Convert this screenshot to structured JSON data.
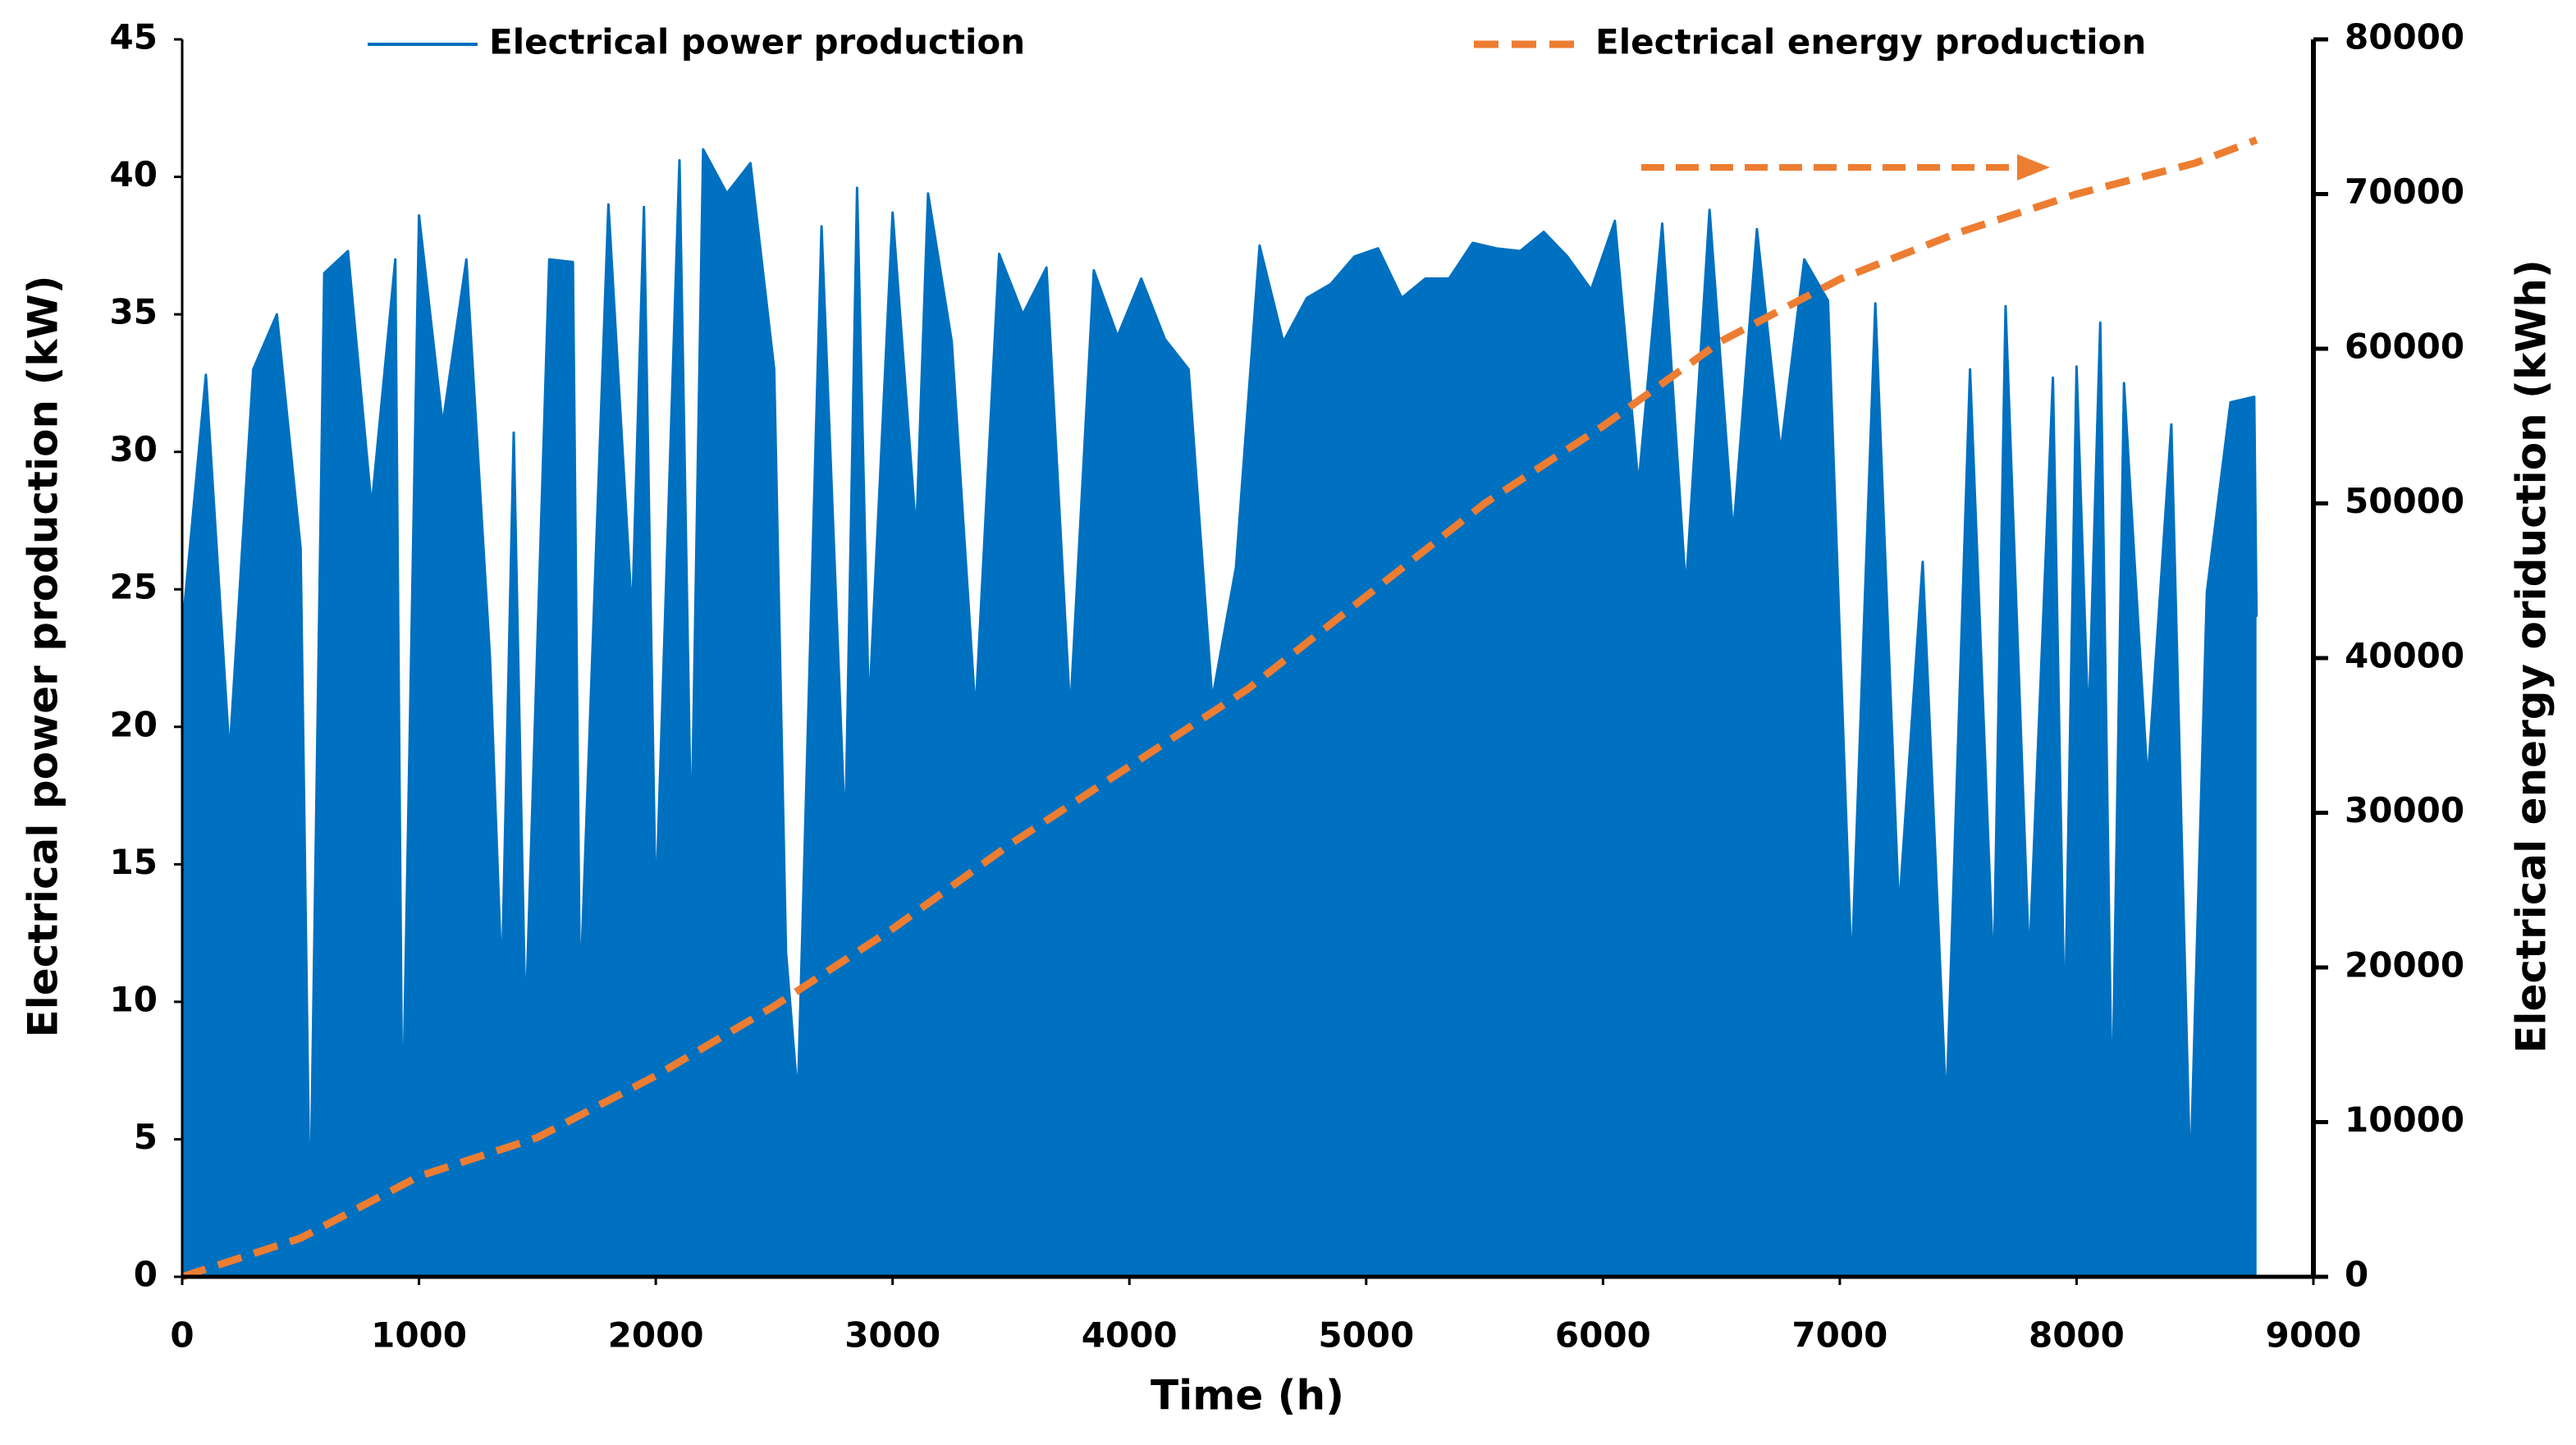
{
  "chart_data": {
    "type": "line",
    "xlabel": "Time (h)",
    "ylabel": "Electrical power production (kW)",
    "y2label": "Electrical energy oriduction (kWh)",
    "xlim": [
      0,
      9000
    ],
    "xticks": [
      0,
      1000,
      2000,
      3000,
      4000,
      5000,
      6000,
      7000,
      8000,
      9000
    ],
    "ylim": [
      0,
      45
    ],
    "yticks": [
      0,
      5,
      10,
      15,
      20,
      25,
      30,
      35,
      40,
      45
    ],
    "y2lim": [
      0,
      80000
    ],
    "y2ticks": [
      0,
      10000,
      20000,
      30000,
      40000,
      50000,
      60000,
      70000,
      80000
    ],
    "legend": "top",
    "series": [
      {
        "name": "Electrical power production",
        "color": "#0070c0",
        "fill": true,
        "x": [
          0,
          100,
          200,
          300,
          400,
          500,
          540,
          600,
          700,
          800,
          900,
          930,
          1000,
          1100,
          1200,
          1300,
          1350,
          1400,
          1450,
          1550,
          1650,
          1680,
          1800,
          1900,
          1950,
          2000,
          2100,
          2150,
          2200,
          2300,
          2400,
          2500,
          2550,
          2600,
          2700,
          2800,
          2850,
          2900,
          3000,
          3100,
          3150,
          3250,
          3350,
          3450,
          3550,
          3650,
          3750,
          3850,
          3950,
          4050,
          4150,
          4250,
          4350,
          4450,
          4550,
          4650,
          4750,
          4850,
          4950,
          5050,
          5150,
          5250,
          5350,
          5450,
          5550,
          5650,
          5750,
          5850,
          5950,
          6050,
          6150,
          6250,
          6350,
          6450,
          6550,
          6650,
          6750,
          6850,
          6950,
          7050,
          7150,
          7250,
          7350,
          7450,
          7550,
          7650,
          7700,
          7800,
          7900,
          7950,
          8000,
          8050,
          8100,
          8150,
          8200,
          8300,
          8400,
          8480,
          8550,
          8650,
          8750,
          8760
        ],
        "values": [
          23.5,
          32.8,
          19,
          33,
          35,
          26.5,
          1.7,
          36.5,
          37.3,
          28,
          37,
          4.9,
          38.6,
          31,
          37,
          22.5,
          10.7,
          30.7,
          9.1,
          37,
          36.9,
          10.1,
          39,
          24,
          38.9,
          13.3,
          40.6,
          15.6,
          41,
          39.4,
          40.5,
          33,
          11.8,
          6.5,
          38.2,
          16,
          39.6,
          20.5,
          38.7,
          27,
          39.4,
          34,
          20.5,
          37.2,
          35,
          36.7,
          20.5,
          36.6,
          34.2,
          36.3,
          34.1,
          33,
          21,
          25.8,
          37.5,
          34,
          35.6,
          36.1,
          37.1,
          37.4,
          35.6,
          36.3,
          36.3,
          37.6,
          37.4,
          37.3,
          38,
          37.1,
          35.9,
          38.4,
          28.8,
          38.3,
          25,
          38.8,
          27,
          38.1,
          30,
          37,
          35.5,
          11.1,
          35.4,
          13.3,
          26,
          6.1,
          33,
          10.8,
          35.3,
          11.4,
          32.7,
          8.8,
          33.1,
          19.9,
          34.7,
          5.7,
          32.5,
          18,
          31,
          3.5,
          24.9,
          31.8,
          32,
          24
        ]
      },
      {
        "name": "Electrical energy production",
        "color": "#ed7d31",
        "axis": "y2",
        "dashed": true,
        "x": [
          0,
          500,
          1000,
          1500,
          2000,
          2500,
          3000,
          3500,
          4000,
          4500,
          5000,
          5500,
          6000,
          6500,
          7000,
          7500,
          8000,
          8500,
          8760
        ],
        "values": [
          0,
          2500,
          6500,
          9000,
          13000,
          17500,
          22500,
          28000,
          33000,
          38000,
          44000,
          50000,
          55000,
          60500,
          64500,
          67500,
          70000,
          72000,
          73500
        ]
      }
    ]
  }
}
